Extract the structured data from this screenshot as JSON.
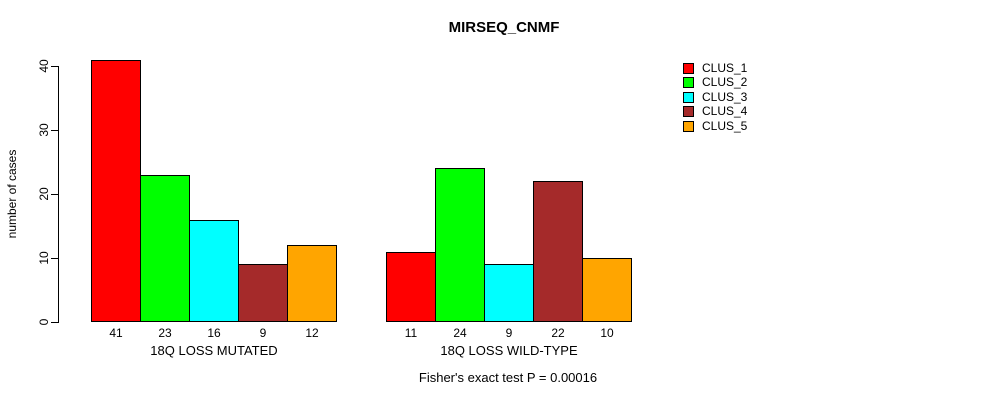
{
  "chart_data": {
    "type": "bar",
    "title": "MIRSEQ_CNMF",
    "ylabel": "number of cases",
    "xlabel": "",
    "ylim": [
      0,
      41
    ],
    "yticks": [
      0,
      10,
      20,
      30,
      40
    ],
    "grid": false,
    "legend_position": "topright",
    "bar_value_labels_shown": true,
    "categories": [
      "18Q LOSS MUTATED",
      "18Q LOSS WILD-TYPE"
    ],
    "series": [
      {
        "name": "CLUS_1",
        "color": "#FF0000",
        "values": [
          41,
          11
        ]
      },
      {
        "name": "CLUS_2",
        "color": "#00FF00",
        "values": [
          23,
          24
        ]
      },
      {
        "name": "CLUS_3",
        "color": "#00FFFF",
        "values": [
          16,
          9
        ]
      },
      {
        "name": "CLUS_4",
        "color": "#A52A2A",
        "values": [
          9,
          22
        ]
      },
      {
        "name": "CLUS_5",
        "color": "#FFA500",
        "values": [
          12,
          10
        ]
      }
    ],
    "annotation": "Fisher's exact test P = 0.00016"
  },
  "colors": {
    "axis": "#000000",
    "text": "#000000",
    "background": "#FFFFFF"
  }
}
